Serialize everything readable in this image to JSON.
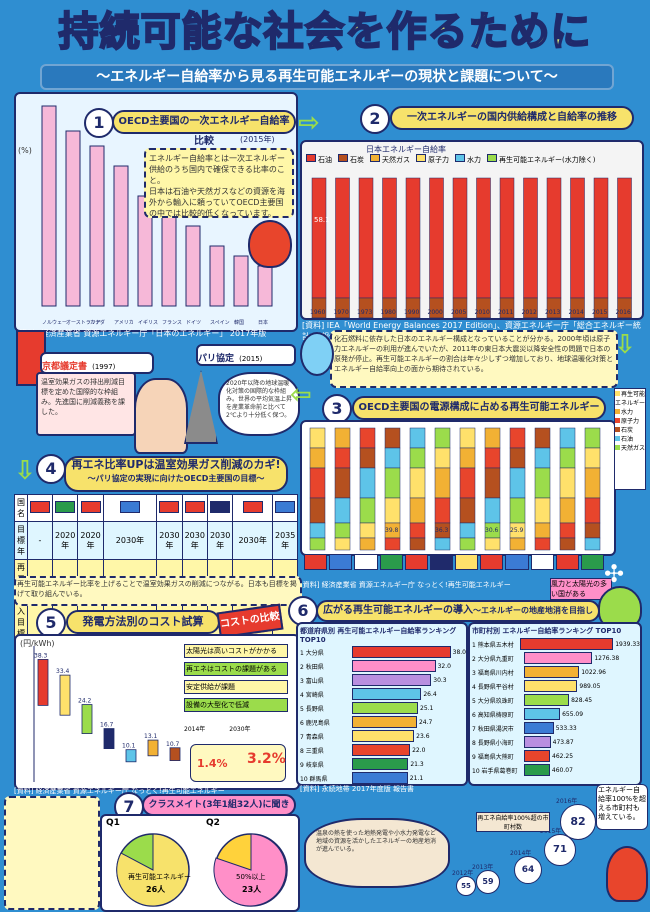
{
  "title": "持続可能な社会を作るために",
  "subtitle": "〜エネルギー自給率から見る再生可能エネルギーの現状と課題について〜",
  "sec1": {
    "num": "1",
    "heading": "OECD主要国の一次エネルギー自給率比較",
    "year": "(2015年)",
    "unit": "(%)",
    "bullets": [
      "エネルギー自給率とは一次エネルギー供給のうち国内で確保できる比率のこと。",
      "日本は石油や天然ガスなどの資源を海外から輸入に頼っていてOECD主要国の中では比較的低くなっています。"
    ],
    "source": "[資料] 経済産業省  資源エネルギー庁「日本のエネルギー」 2017年版",
    "labels": [
      "ノルウェー",
      "オーストラリア",
      "カナダ",
      "アメリカ",
      "イギリス",
      "フランス",
      "ドイツ",
      "スペイン",
      "韓国",
      "日本"
    ]
  },
  "sec2": {
    "num": "2",
    "heading": "一次エネルギーの国内供給構成と自給率の推移",
    "legend": [
      "石油",
      "石炭",
      "天然ガス",
      "原子力",
      "水力",
      "再生可能エネルギー(水力除く)"
    ],
    "selfrate_label": "日本エネルギー自給率",
    "years": [
      "1960",
      "1970",
      "1973",
      "1980",
      "1990",
      "2000",
      "2005",
      "2010",
      "2011",
      "2012",
      "2013",
      "2014",
      "2015",
      "2016"
    ],
    "unit": "(年)",
    "source": "[資料] IEA「World Energy Balances 2017 Edition」、資源エネルギー庁「総合エネルギー統計(速報値)」",
    "first_value": "58.1"
  },
  "sec2note": "化石燃料に依存した日本のエネルギー構成となっていることが分かる。2000年頃は原子力エネルギーの利用が進んでいたが、2011年の東日本大震災以降安全性の問題で日本の原発が停止。再生可能エネルギーの割合は年々少しずつ増加しており、地球温暖化対策とエネルギー自給率向上の面から期待されている。",
  "sec3": {
    "num": "3",
    "heading": "OECD主要国の電源構成に占める再生可能エネルギーの比率",
    "values": [
      "",
      "",
      "",
      "39.8",
      "",
      "36.3",
      "",
      "30.6",
      "25.9",
      "",
      "",
      ""
    ],
    "legend": [
      "再生可能エネルギー",
      "水力",
      "原子力",
      "石炭",
      "石油",
      "天然ガス"
    ],
    "source": "[資料] 経済産業省  資源エネルギー庁 なっとく!再生可能エネルギー",
    "note": "風力と太陽光の多い国がある"
  },
  "kyoto": {
    "label": "京都議定書",
    "year": "(1997)",
    "text": "温室効果ガスの排出削減目標を定めた国際的な枠組み。先進国に削減義務を課した。"
  },
  "paris": {
    "label": "パリ協定",
    "year": "(2015)",
    "text": "2020年以降の地球温暖化対策の国際的な枠組み。世界の平均気温上昇を産業革命前と比べて2℃より十分低く保つ。"
  },
  "sec4": {
    "num": "4",
    "heading": "再エネ比率UPは温室効果ガス削減のカギ!",
    "sub": "〜パリ協定の実現に向けたOECD主要国の目標〜",
    "row_heads": [
      "国名",
      "目標年",
      "再エネ導入目標"
    ],
    "cols": [
      {
        "year": "-",
        "target": "-"
      },
      {
        "year": "2020年",
        "target": "35%"
      },
      {
        "year": "2020年",
        "target": "40%"
      },
      {
        "year": "2030年",
        "target": "(20%)~45%"
      },
      {
        "year": "2030年",
        "target": "44%"
      },
      {
        "year": "2030年",
        "target": "15%"
      },
      {
        "year": "2030年",
        "target": "40%"
      },
      {
        "year": "2030年",
        "target": "22~24%"
      },
      {
        "year": "2035年",
        "target": "80%"
      }
    ],
    "note": "再生可能エネルギー比率を上げることで温室効果ガスの削減につながる。日本も目標を掲げて取り組んでいる。"
  },
  "sec5": {
    "num": "5",
    "heading": "発電方法別のコスト試算",
    "badge": "コストの比較",
    "ylabel": "(円/kWh)",
    "values": [
      "38.3",
      "33.4",
      "24.2",
      "16.7",
      "10.1",
      "13.1",
      "10.7"
    ],
    "notes": [
      "太陽光は高いコストがかかる",
      "再エネはコストの課題がある",
      "安定供給が課題",
      "設備の大型化で低減"
    ],
    "boxes": [
      "2014年",
      "2030年"
    ],
    "pct": [
      "1.4%",
      "3.2%"
    ],
    "source": "[資料] 経済産業省  資源エネルギー庁 なっとく!再生可能エネルギー"
  },
  "sec6": {
    "num": "6",
    "heading": "広がる再生可能エネルギーの導入",
    "sub": "〜エネルギーの地産地消を目指して〜",
    "pref_title": "都道府県別 再生可能エネルギー自給率ランキング TOP10",
    "pref": [
      {
        "n": "大分県",
        "v": "38.0"
      },
      {
        "n": "秋田県",
        "v": "32.0"
      },
      {
        "n": "富山県",
        "v": "30.3"
      },
      {
        "n": "宮崎県",
        "v": "26.4"
      },
      {
        "n": "長野県",
        "v": "25.1"
      },
      {
        "n": "鹿児島県",
        "v": "24.7"
      },
      {
        "n": "青森県",
        "v": "23.6"
      },
      {
        "n": "三重県",
        "v": "22.0"
      },
      {
        "n": "岐阜県",
        "v": "21.3"
      },
      {
        "n": "群馬県",
        "v": "21.1"
      }
    ],
    "muni_title": "市町村別 エネルギー自給率ランキング TOP10",
    "muni": [
      {
        "n": "熊本県五木村",
        "v": "1939.33"
      },
      {
        "n": "大分県九重町",
        "v": "1276.38"
      },
      {
        "n": "福島県川内村",
        "v": "1022.96"
      },
      {
        "n": "長野県平谷村",
        "v": "989.05"
      },
      {
        "n": "大分県玖珠町",
        "v": "828.45"
      },
      {
        "n": "高知県梼原町",
        "v": "655.09"
      },
      {
        "n": "秋田県湯沢市",
        "v": "533.33"
      },
      {
        "n": "長野県小海町",
        "v": "473.87"
      },
      {
        "n": "福島県大熊町",
        "v": "462.25"
      },
      {
        "n": "岩手県葛巻町",
        "v": "460.07"
      }
    ],
    "source": "[資料] 永続地帯  2017年度版  報告書"
  },
  "sec7": {
    "num": "7",
    "heading": "クラスメイト(3年1組32人)に聞きました!",
    "q1": "Q1",
    "q2": "Q2",
    "pie1_label": "再生可能エネルギー",
    "pie1_count": "26人",
    "pie2_label": "50%以上",
    "pie2_count": "23人"
  },
  "onsen": "温泉の熱を使った地熱発電や小水力発電など地域の資源を活かしたエネルギーの地産地消が進んでいる。",
  "growth": {
    "label": "再エネ自給率100%超の市町村数",
    "values": [
      "55",
      "59",
      "64",
      "71",
      "82"
    ],
    "years": [
      "2012年",
      "2013年",
      "2014年",
      "2015年",
      "2016年"
    ]
  },
  "right_note": "エネルギー自給率100%を超える市町村も増えている。"
}
